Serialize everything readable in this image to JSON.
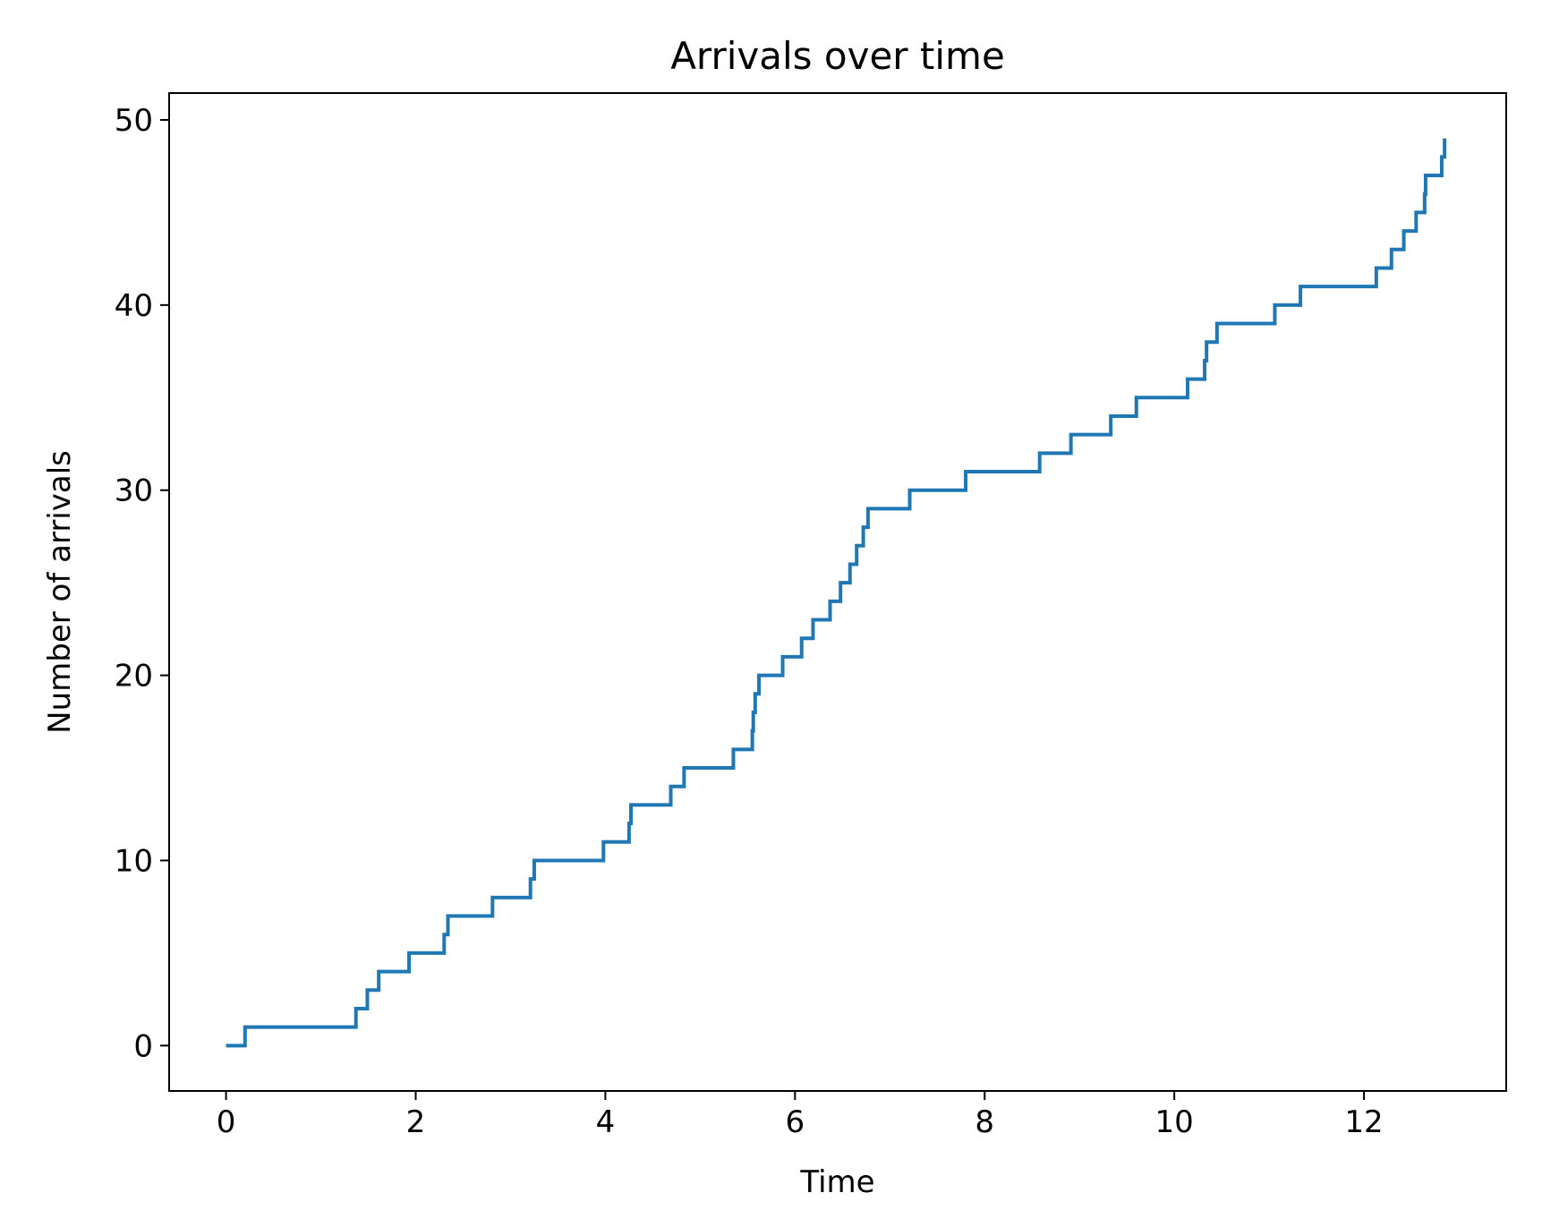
{
  "chart_data": {
    "type": "line",
    "step": "post",
    "title": "Arrivals over time",
    "xlabel": "Time",
    "ylabel": "Number of arrivals",
    "xlim": [
      -0.6,
      13.5
    ],
    "ylim": [
      -2.45,
      51.45
    ],
    "xticks": [
      0,
      2,
      4,
      6,
      8,
      10,
      12
    ],
    "yticks": [
      0,
      10,
      20,
      30,
      40,
      50
    ],
    "grid": false,
    "series": [
      {
        "color": "#1f77b4",
        "x": [
          0,
          0.2,
          1.37,
          1.49,
          1.61,
          1.93,
          2.3,
          2.34,
          2.81,
          3.21,
          3.25,
          3.98,
          4.25,
          4.27,
          4.69,
          4.83,
          5.35,
          5.55,
          5.56,
          5.58,
          5.62,
          5.87,
          6.07,
          6.19,
          6.37,
          6.48,
          6.58,
          6.65,
          6.72,
          6.77,
          7.21,
          7.8,
          8.58,
          8.91,
          9.33,
          9.6,
          10.14,
          10.32,
          10.34,
          10.45,
          11.06,
          11.33,
          12.13,
          12.29,
          12.42,
          12.55,
          12.64,
          12.65,
          12.82,
          12.85
        ],
        "y": [
          0,
          1,
          2,
          3,
          4,
          5,
          6,
          7,
          8,
          9,
          10,
          11,
          12,
          13,
          14,
          15,
          16,
          17,
          18,
          19,
          20,
          21,
          22,
          23,
          24,
          25,
          26,
          27,
          28,
          29,
          30,
          31,
          32,
          33,
          34,
          35,
          36,
          37,
          38,
          39,
          40,
          41,
          42,
          43,
          44,
          45,
          46,
          47,
          48,
          49
        ]
      }
    ]
  }
}
